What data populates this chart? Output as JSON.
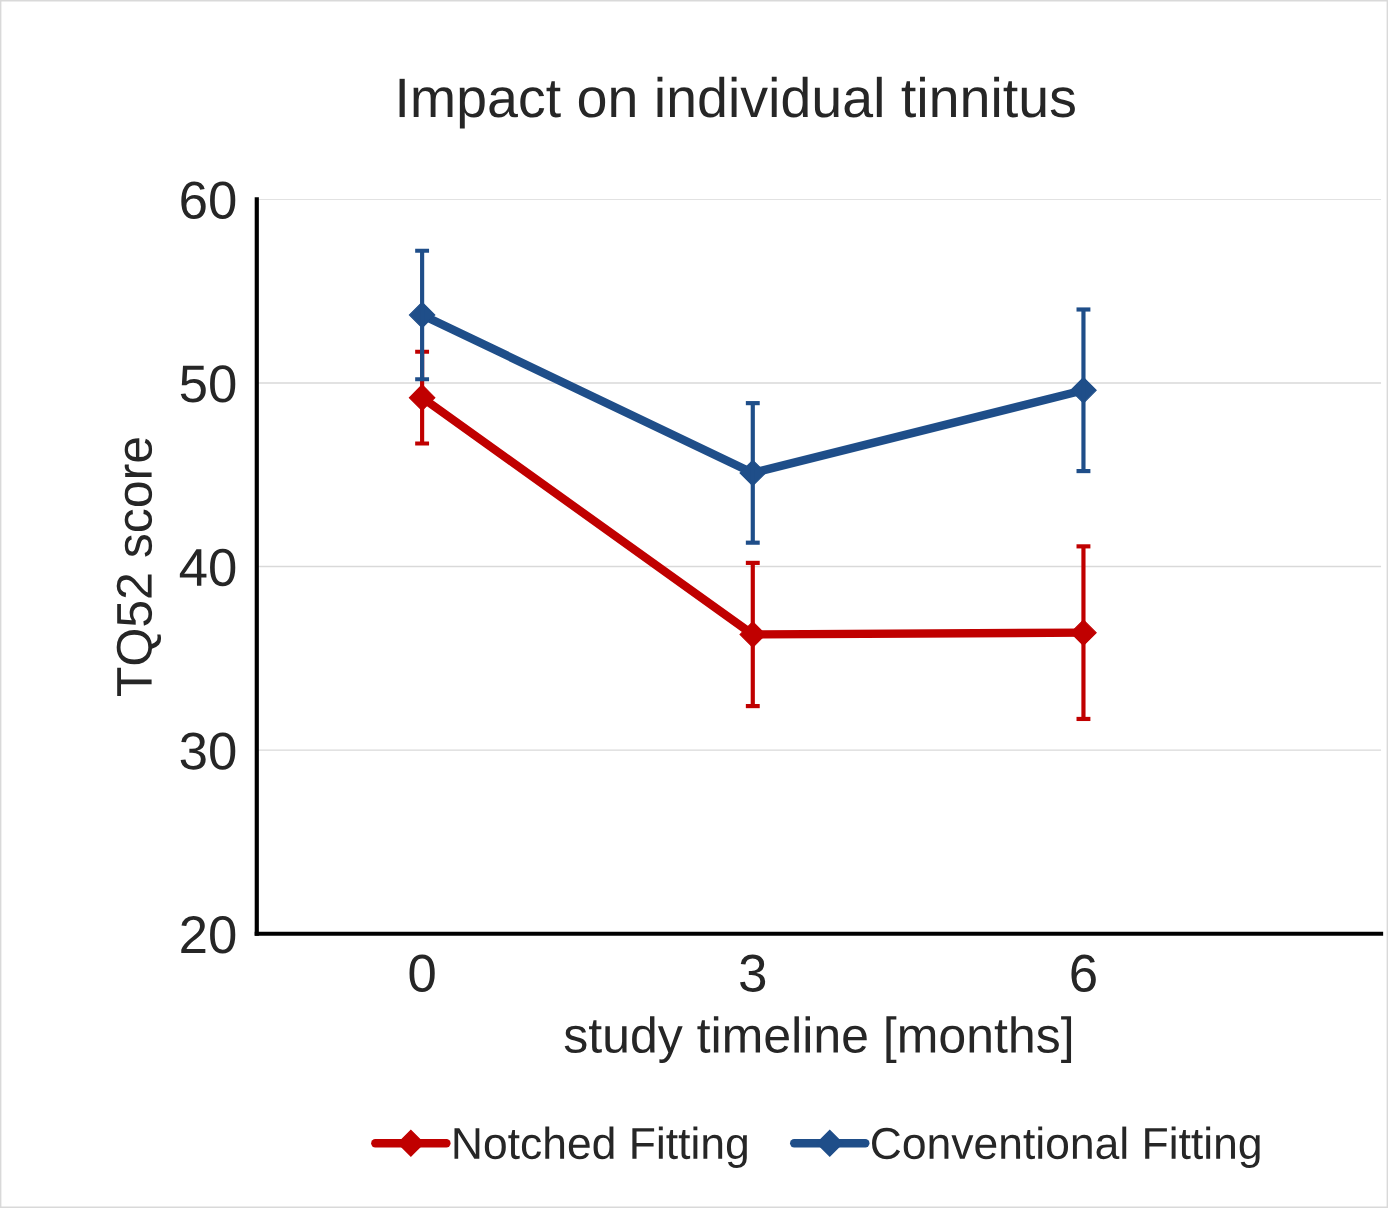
{
  "chart_data": {
    "type": "line",
    "title": "Impact on individual tinnitus",
    "xlabel": "study timeline [months]",
    "ylabel": "TQ52 score",
    "categories": [
      "0",
      "3",
      "6"
    ],
    "series": [
      {
        "name": "Notched Fitting",
        "color": "#c00000",
        "values": [
          49.2,
          36.3,
          36.4
        ],
        "errors": [
          2.5,
          3.9,
          4.7
        ]
      },
      {
        "name": "Conventional Fitting",
        "color": "#1f4e89",
        "values": [
          53.7,
          45.1,
          49.6
        ],
        "errors": [
          3.5,
          3.8,
          4.4
        ]
      }
    ],
    "ylim": [
      20,
      60
    ],
    "yticks": [
      20,
      30,
      40,
      50,
      60
    ],
    "grid": "y",
    "legend": "bottom",
    "marker": "diamond",
    "line_style": "solid"
  }
}
